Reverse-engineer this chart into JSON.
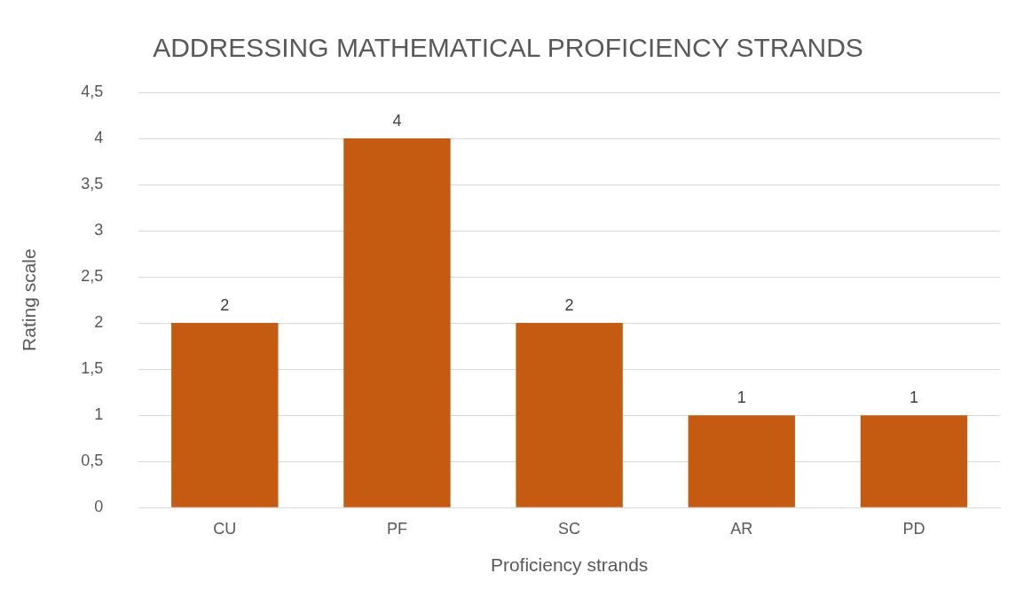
{
  "chart_data": {
    "type": "bar",
    "title": "ADDRESSING MATHEMATICAL PROFICIENCY STRANDS",
    "xlabel": "Proficiency strands",
    "ylabel": "Rating scale",
    "categories": [
      "CU",
      "PF",
      "SC",
      "AR",
      "PD"
    ],
    "values": [
      2,
      4,
      2,
      1,
      1
    ],
    "color": "#c55a11",
    "ylim": [
      0,
      4.5
    ],
    "yticks": [
      0,
      {
        "value": 0.5,
        "label": "0,5"
      },
      1,
      {
        "value": 1.5,
        "label": "1,5"
      },
      2,
      {
        "value": 2.5,
        "label": "2,5"
      },
      3,
      {
        "value": 3.5,
        "label": "3,5"
      },
      4,
      {
        "value": 4.5,
        "label": "4,5"
      }
    ],
    "grid": "y",
    "data_labels": true
  }
}
